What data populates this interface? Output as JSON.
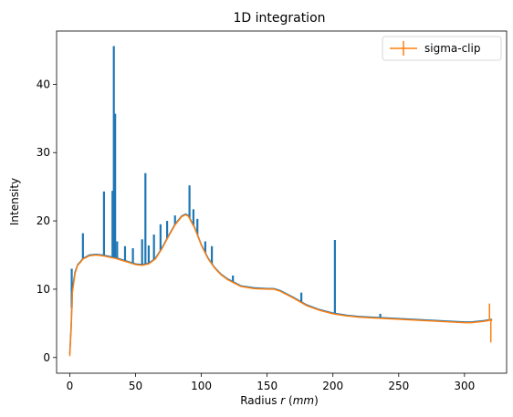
{
  "chart_data": {
    "type": "line",
    "title": "1D integration",
    "xlabel": "Radius",
    "xlabel_var": "r",
    "xlabel_unit": "mm",
    "ylabel": "Intensity",
    "xlim": [
      -10,
      332
    ],
    "ylim": [
      -2.3,
      47.8
    ],
    "xticks": [
      0,
      50,
      100,
      150,
      200,
      250,
      300
    ],
    "yticks": [
      0,
      10,
      20,
      30,
      40
    ],
    "grid": false,
    "legend": {
      "position": "top-right",
      "entries": [
        "sigma-clip"
      ]
    },
    "colors": {
      "raw": "#1f77b4",
      "sigma_clip": "#ff7f0e"
    },
    "series": [
      {
        "x": [
          0,
          1,
          2,
          4,
          6,
          8,
          10,
          15,
          20,
          25,
          30,
          35,
          40,
          45,
          50,
          55,
          60,
          65,
          70,
          75,
          80,
          85,
          88,
          90,
          95,
          100,
          105,
          110,
          115,
          120,
          125,
          130,
          140,
          150,
          155,
          160,
          170,
          180,
          190,
          200,
          210,
          220,
          230,
          240,
          250,
          260,
          270,
          280,
          290,
          300,
          305,
          310,
          315,
          318,
          320,
          321
        ],
        "y": [
          0.5,
          4.5,
          10,
          12.5,
          13.6,
          14,
          14.5,
          15,
          15.1,
          15,
          14.8,
          14.6,
          14.3,
          14,
          13.7,
          13.6,
          13.8,
          14.5,
          16,
          17.8,
          19.5,
          20.7,
          21,
          20.8,
          19,
          16.5,
          14.6,
          13.2,
          12.2,
          11.5,
          11,
          10.5,
          10.2,
          10.1,
          10.1,
          9.8,
          8.8,
          7.7,
          7,
          6.5,
          6.2,
          6,
          5.9,
          5.8,
          5.7,
          5.6,
          5.5,
          5.4,
          5.3,
          5.2,
          5.2,
          5.3,
          5.4,
          5.5,
          5.6,
          5.5
        ],
        "spikes": [
          {
            "x": 1.5,
            "y": 13
          },
          {
            "x": 10,
            "y": 18.2
          },
          {
            "x": 26,
            "y": 24.3
          },
          {
            "x": 32.5,
            "y": 24.4
          },
          {
            "x": 33.5,
            "y": 45.6
          },
          {
            "x": 34.5,
            "y": 35.7
          },
          {
            "x": 36,
            "y": 17
          },
          {
            "x": 42,
            "y": 16.3
          },
          {
            "x": 48,
            "y": 16
          },
          {
            "x": 55,
            "y": 17.3
          },
          {
            "x": 57.5,
            "y": 27
          },
          {
            "x": 60,
            "y": 16.4
          },
          {
            "x": 64,
            "y": 18
          },
          {
            "x": 69,
            "y": 19.5
          },
          {
            "x": 74,
            "y": 20
          },
          {
            "x": 80,
            "y": 20.8
          },
          {
            "x": 91,
            "y": 25.2
          },
          {
            "x": 94,
            "y": 21.7
          },
          {
            "x": 97,
            "y": 20.3
          },
          {
            "x": 103,
            "y": 17
          },
          {
            "x": 108,
            "y": 16.3
          },
          {
            "x": 124,
            "y": 12
          },
          {
            "x": 176,
            "y": 9.5
          },
          {
            "x": 201.5,
            "y": 17.2
          },
          {
            "x": 236,
            "y": 6.4
          }
        ]
      },
      {
        "name": "sigma-clip",
        "x": [
          0,
          1,
          2,
          4,
          6,
          8,
          10,
          15,
          20,
          25,
          30,
          35,
          40,
          45,
          50,
          55,
          60,
          65,
          70,
          75,
          80,
          85,
          88,
          90,
          95,
          100,
          105,
          110,
          115,
          120,
          125,
          130,
          140,
          150,
          155,
          160,
          170,
          180,
          190,
          200,
          210,
          220,
          230,
          240,
          250,
          260,
          270,
          280,
          290,
          300,
          305,
          310,
          315,
          318,
          320,
          321
        ],
        "y": [
          0.2,
          4,
          9.5,
          12.3,
          13.5,
          13.9,
          14.4,
          14.9,
          15,
          14.9,
          14.7,
          14.5,
          14.2,
          13.9,
          13.6,
          13.5,
          13.7,
          14.4,
          15.9,
          17.7,
          19.4,
          20.6,
          20.9,
          20.7,
          18.9,
          16.4,
          14.5,
          13.1,
          12.1,
          11.4,
          10.9,
          10.4,
          10.1,
          10,
          10,
          9.7,
          8.7,
          7.6,
          6.9,
          6.4,
          6.1,
          5.9,
          5.8,
          5.7,
          5.6,
          5.5,
          5.4,
          5.3,
          5.2,
          5.1,
          5.1,
          5.2,
          5.3,
          5.4,
          5.5,
          5.4
        ],
        "endpoint_spikes": [
          {
            "x": 319,
            "y": 7.9
          },
          {
            "x": 320,
            "y": 2.2
          }
        ]
      }
    ]
  }
}
